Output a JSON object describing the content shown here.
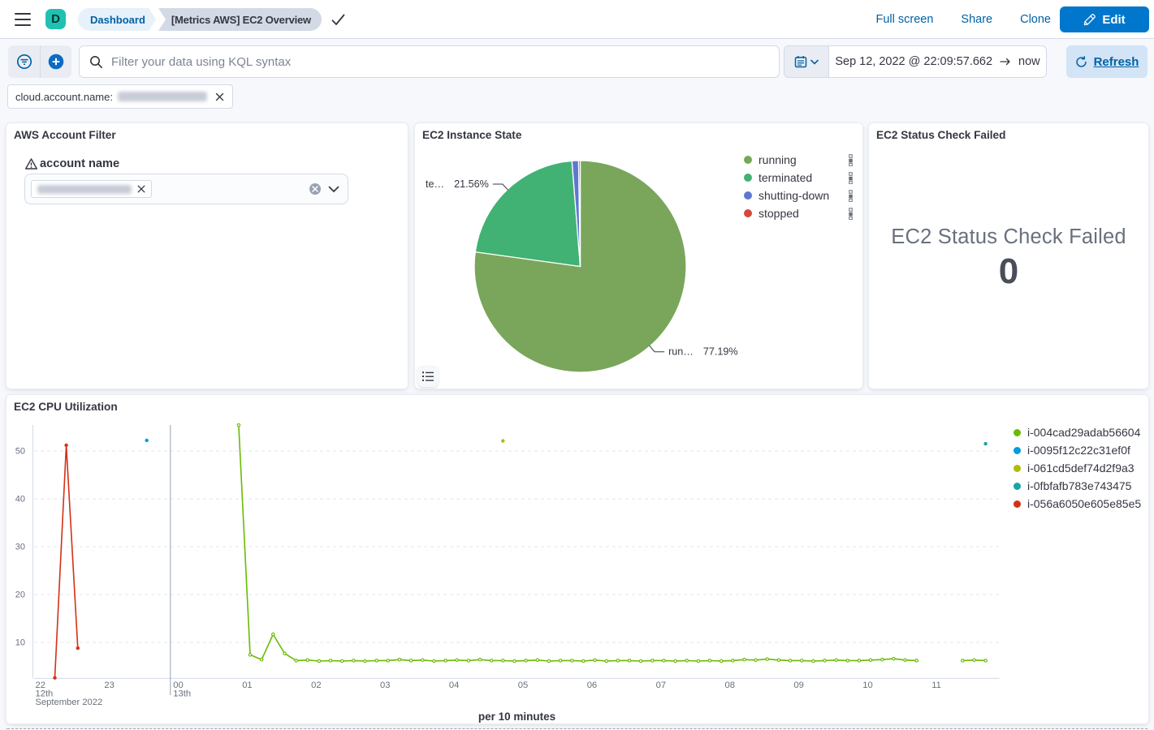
{
  "header": {
    "logo_initial": "D",
    "logo_color": "#1DC2B2",
    "breadcrumbs": [
      "Dashboard",
      "[Metrics AWS] EC2 Overview"
    ],
    "actions": [
      "Full screen",
      "Share",
      "Clone"
    ],
    "edit_button": "Edit"
  },
  "query_bar": {
    "search_placeholder": "Filter your data using KQL syntax",
    "date_start": "Sep 12, 2022 @ 22:09:57.662",
    "date_end": "now",
    "refresh_label": "Refresh"
  },
  "filter_bar": {
    "pill_field": "cloud.account.name:",
    "pill_value_redacted": true
  },
  "panels": {
    "account_filter": {
      "title": "AWS Account Filter",
      "control_label": "account name",
      "selected_tag_redacted": true
    },
    "instance_state": {
      "title": "EC2 Instance State",
      "chart_data": {
        "type": "pie",
        "title": "EC2 Instance State",
        "legend_position": "right",
        "slices": [
          {
            "label": "running",
            "value": 77.19,
            "color": "#79A65B"
          },
          {
            "label": "terminated",
            "value": 21.56,
            "color": "#41B273"
          },
          {
            "label": "shutting-down",
            "value": 1.0,
            "color": "#5E77D2"
          },
          {
            "label": "stopped",
            "value": 0.25,
            "color": "#D6473B"
          }
        ],
        "callouts": [
          {
            "slice": "terminated",
            "text": "te…",
            "value": "21.56%"
          },
          {
            "slice": "running",
            "text": "run…",
            "value": "77.19%"
          }
        ]
      }
    },
    "status_check": {
      "title": "EC2 Status Check Failed",
      "metric_label": "EC2 Status Check Failed",
      "metric_value": "0"
    },
    "cpu": {
      "title": "EC2 CPU Utilization",
      "footer": "per 10 minutes",
      "chart_data": {
        "type": "line",
        "ylabel": "",
        "xlabel": "per 10 minutes",
        "ylim": [
          2.5,
          55.6
        ],
        "y_ticks": [
          10,
          20,
          30,
          40,
          50
        ],
        "x_ticks": [
          "22",
          "23",
          "00",
          "01",
          "02",
          "03",
          "04",
          "05",
          "06",
          "07",
          "08",
          "09",
          "10",
          "11"
        ],
        "x_context": [
          {
            "tick": "22",
            "lines": [
              "12th",
              "September 2022"
            ]
          },
          {
            "tick": "00",
            "lines": [
              "13th"
            ]
          }
        ],
        "day_boundary_tick": "00",
        "grid": true,
        "legend_position": "top-right",
        "series": [
          {
            "name": "i-004cad29adab56604",
            "color": "#68BC00",
            "points": [
              [
                "00:58",
                55.4
              ],
              [
                "01:08",
                7.4
              ],
              [
                "01:18",
                6.4
              ],
              [
                "01:28",
                11.7
              ],
              [
                "01:38",
                7.7
              ],
              [
                "01:48",
                6.2
              ],
              [
                "01:58",
                6.3
              ],
              [
                "02:08",
                6.1
              ],
              [
                "02:18",
                6.2
              ],
              [
                "02:28",
                6.1
              ],
              [
                "02:38",
                6.2
              ],
              [
                "02:48",
                6.1
              ],
              [
                "02:58",
                6.2
              ],
              [
                "03:08",
                6.2
              ],
              [
                "03:18",
                6.4
              ],
              [
                "03:28",
                6.2
              ],
              [
                "03:38",
                6.3
              ],
              [
                "03:48",
                6.1
              ],
              [
                "03:58",
                6.2
              ],
              [
                "04:08",
                6.3
              ],
              [
                "04:18",
                6.2
              ],
              [
                "04:28",
                6.4
              ],
              [
                "04:38",
                6.2
              ],
              [
                "04:48",
                6.2
              ],
              [
                "04:58",
                6.1
              ],
              [
                "05:08",
                6.2
              ],
              [
                "05:18",
                6.3
              ],
              [
                "05:28",
                6.1
              ],
              [
                "05:38",
                6.2
              ],
              [
                "05:48",
                6.2
              ],
              [
                "05:58",
                6.1
              ],
              [
                "06:08",
                6.3
              ],
              [
                "06:18",
                6.1
              ],
              [
                "06:28",
                6.2
              ],
              [
                "06:38",
                6.2
              ],
              [
                "06:48",
                6.1
              ],
              [
                "06:58",
                6.2
              ],
              [
                "07:08",
                6.2
              ],
              [
                "07:18",
                6.1
              ],
              [
                "07:28",
                6.2
              ],
              [
                "07:38",
                6.1
              ],
              [
                "07:48",
                6.2
              ],
              [
                "07:58",
                6.1
              ],
              [
                "08:08",
                6.2
              ],
              [
                "08:18",
                6.4
              ],
              [
                "08:28",
                6.3
              ],
              [
                "08:38",
                6.5
              ],
              [
                "08:48",
                6.3
              ],
              [
                "08:58",
                6.2
              ],
              [
                "09:08",
                6.2
              ],
              [
                "09:18",
                6.1
              ],
              [
                "09:28",
                6.2
              ],
              [
                "09:38",
                6.3
              ],
              [
                "09:48",
                6.2
              ],
              [
                "09:58",
                6.2
              ],
              [
                "10:08",
                6.3
              ],
              [
                "10:18",
                6.4
              ],
              [
                "10:28",
                6.6
              ],
              [
                "10:38",
                6.3
              ],
              [
                "10:48",
                6.2
              ],
              [
                "11:28",
                6.2
              ],
              [
                "11:38",
                6.3
              ],
              [
                "11:48",
                6.2
              ]
            ]
          },
          {
            "name": "i-0095f12c22c31ef0f",
            "color": "#009CE0",
            "points": [
              [
                "23:38",
                52.2
              ]
            ]
          },
          {
            "name": "i-061cd5def74d2f9a3",
            "color": "#B0BC00",
            "points": [
              [
                "04:48",
                52.1
              ]
            ]
          },
          {
            "name": "i-0fbfafb783e743475",
            "color": "#16A5A5",
            "points": [
              [
                "11:48",
                51.5
              ]
            ]
          },
          {
            "name": "i-056a6050e605e85e5",
            "color": "#D33115",
            "points": [
              [
                "22:18",
                2.6
              ],
              [
                "22:28",
                51.2
              ],
              [
                "22:38",
                8.8
              ]
            ]
          }
        ]
      }
    }
  }
}
